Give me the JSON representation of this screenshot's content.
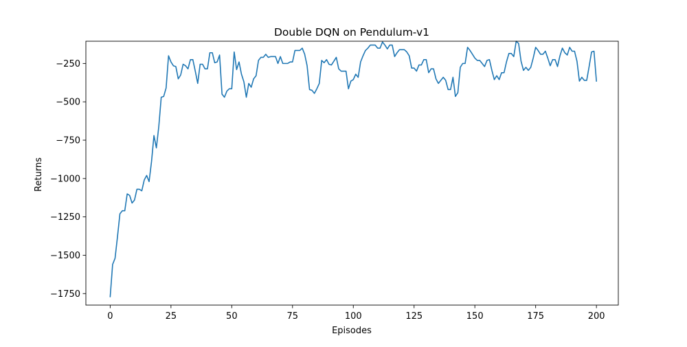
{
  "chart_data": {
    "type": "line",
    "title": "Double DQN on Pendulum-v1",
    "xlabel": "Episodes",
    "ylabel": "Returns",
    "xlim": [
      -10,
      209
    ],
    "ylim": [
      -1825,
      -105
    ],
    "x_ticks": [
      0,
      25,
      50,
      75,
      100,
      125,
      150,
      175,
      200
    ],
    "x_tick_labels": [
      "0",
      "25",
      "50",
      "75",
      "100",
      "125",
      "150",
      "175",
      "200"
    ],
    "y_ticks": [
      -250,
      -500,
      -750,
      -1000,
      -1250,
      -1500,
      -1750
    ],
    "y_tick_labels": [
      "−250",
      "−500",
      "−750",
      "−1000",
      "−1250",
      "−1500",
      "−1750"
    ],
    "grid": false,
    "line_color": "#1f77b4",
    "series": [
      {
        "values": [
          -1770,
          -1560,
          -1520,
          -1380,
          -1230,
          -1210,
          -1210,
          -1100,
          -1110,
          -1160,
          -1140,
          -1070,
          -1070,
          -1080,
          -1010,
          -980,
          -1020,
          -890,
          -720,
          -800,
          -660,
          -470,
          -465,
          -410,
          -200,
          -240,
          -265,
          -270,
          -350,
          -325,
          -255,
          -265,
          -285,
          -225,
          -225,
          -300,
          -380,
          -255,
          -255,
          -285,
          -285,
          -180,
          -180,
          -245,
          -240,
          -195,
          -450,
          -470,
          -430,
          -415,
          -415,
          -175,
          -290,
          -240,
          -320,
          -370,
          -470,
          -380,
          -405,
          -350,
          -330,
          -230,
          -210,
          -210,
          -190,
          -210,
          -205,
          -205,
          -205,
          -250,
          -205,
          -250,
          -250,
          -250,
          -240,
          -240,
          -165,
          -165,
          -165,
          -150,
          -190,
          -265,
          -420,
          -425,
          -445,
          -415,
          -380,
          -230,
          -245,
          -225,
          -255,
          -260,
          -235,
          -210,
          -285,
          -300,
          -300,
          -300,
          -415,
          -365,
          -355,
          -320,
          -340,
          -240,
          -200,
          -165,
          -150,
          -130,
          -130,
          -130,
          -150,
          -150,
          -110,
          -130,
          -155,
          -130,
          -130,
          -205,
          -180,
          -160,
          -160,
          -160,
          -175,
          -200,
          -280,
          -280,
          -300,
          -260,
          -260,
          -225,
          -225,
          -310,
          -285,
          -285,
          -350,
          -380,
          -360,
          -340,
          -360,
          -420,
          -420,
          -340,
          -465,
          -440,
          -275,
          -250,
          -250,
          -145,
          -165,
          -190,
          -215,
          -230,
          -230,
          -250,
          -270,
          -230,
          -225,
          -295,
          -355,
          -330,
          -355,
          -310,
          -310,
          -240,
          -185,
          -185,
          -205,
          -105,
          -120,
          -235,
          -295,
          -275,
          -295,
          -275,
          -215,
          -145,
          -165,
          -190,
          -190,
          -170,
          -215,
          -265,
          -225,
          -225,
          -270,
          -200,
          -150,
          -180,
          -195,
          -145,
          -170,
          -170,
          -235,
          -365,
          -340,
          -360,
          -360,
          -270,
          -175,
          -170,
          -365
        ]
      }
    ]
  }
}
